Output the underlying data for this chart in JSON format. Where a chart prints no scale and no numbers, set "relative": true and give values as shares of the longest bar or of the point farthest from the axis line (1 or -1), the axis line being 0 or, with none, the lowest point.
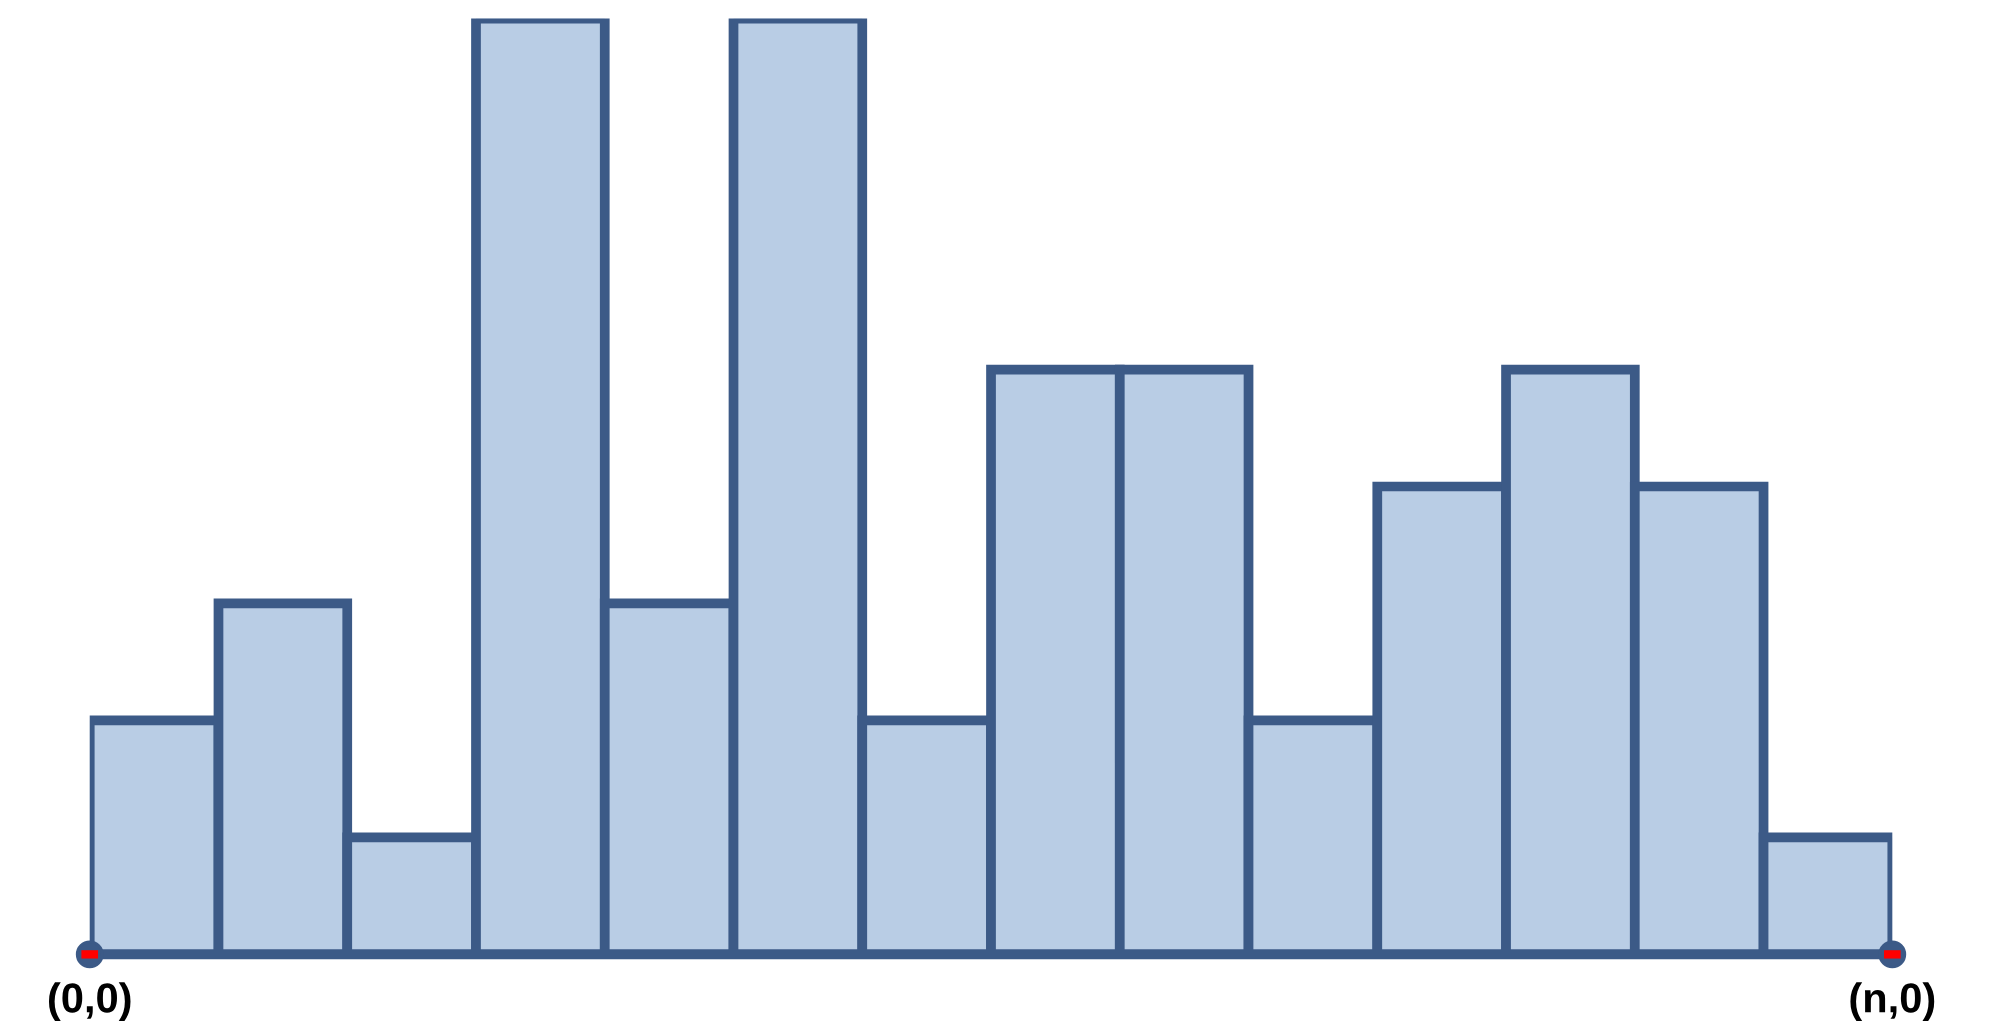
{
  "chart_data": {
    "type": "bar",
    "relative": true,
    "categories": [
      null,
      null,
      null,
      null,
      null,
      null,
      null,
      null,
      null,
      null,
      null,
      null,
      null,
      null
    ],
    "values": [
      0.25,
      0.375,
      0.125,
      1,
      0.375,
      1,
      0.25,
      0.625,
      0.625,
      0.25,
      0.5,
      0.625,
      0.5,
      0.125
    ],
    "color": "#b9cde5",
    "annotations": [
      "(0,0)",
      "(n,0)"
    ]
  }
}
